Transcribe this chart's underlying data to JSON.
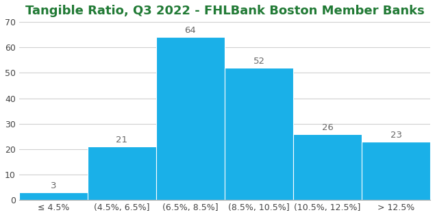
{
  "title": "Tangible Ratio, Q3 2022 - FHLBank Boston Member Banks",
  "categories": [
    "≤ 4.5%",
    "(4.5%, 6.5%]",
    "(6.5%, 8.5%]",
    "(8.5%, 10.5%]",
    "(10.5%, 12.5%]",
    "> 12.5%"
  ],
  "values": [
    3,
    21,
    64,
    52,
    26,
    23
  ],
  "bar_color": "#1ab0e8",
  "title_color": "#217a35",
  "label_color": "#666666",
  "ylim": [
    0,
    70
  ],
  "yticks": [
    0,
    10,
    20,
    30,
    40,
    50,
    60,
    70
  ],
  "background_color": "#ffffff",
  "grid_color": "#d0d0d0",
  "title_fontsize": 13,
  "tick_fontsize": 9,
  "bar_label_fontsize": 9.5
}
